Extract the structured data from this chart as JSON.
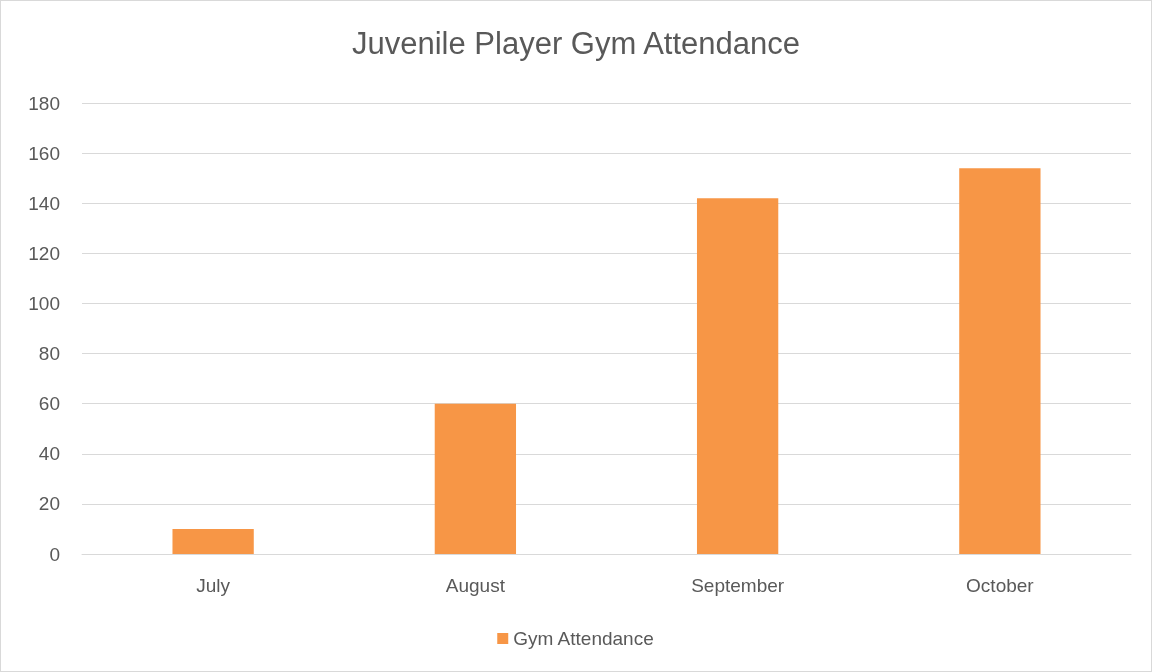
{
  "chart_data": {
    "type": "bar",
    "title": "Juvenile Player Gym Attendance",
    "categories": [
      "July",
      "August",
      "September",
      "October"
    ],
    "series": [
      {
        "name": "Gym Attendance",
        "color": "#f79646",
        "values": [
          10,
          60,
          142,
          154
        ]
      }
    ],
    "ylim": [
      0,
      180
    ],
    "yticks": [
      0,
      20,
      40,
      60,
      80,
      100,
      120,
      140,
      160,
      180
    ],
    "grid": "y",
    "legend": "bottom"
  }
}
